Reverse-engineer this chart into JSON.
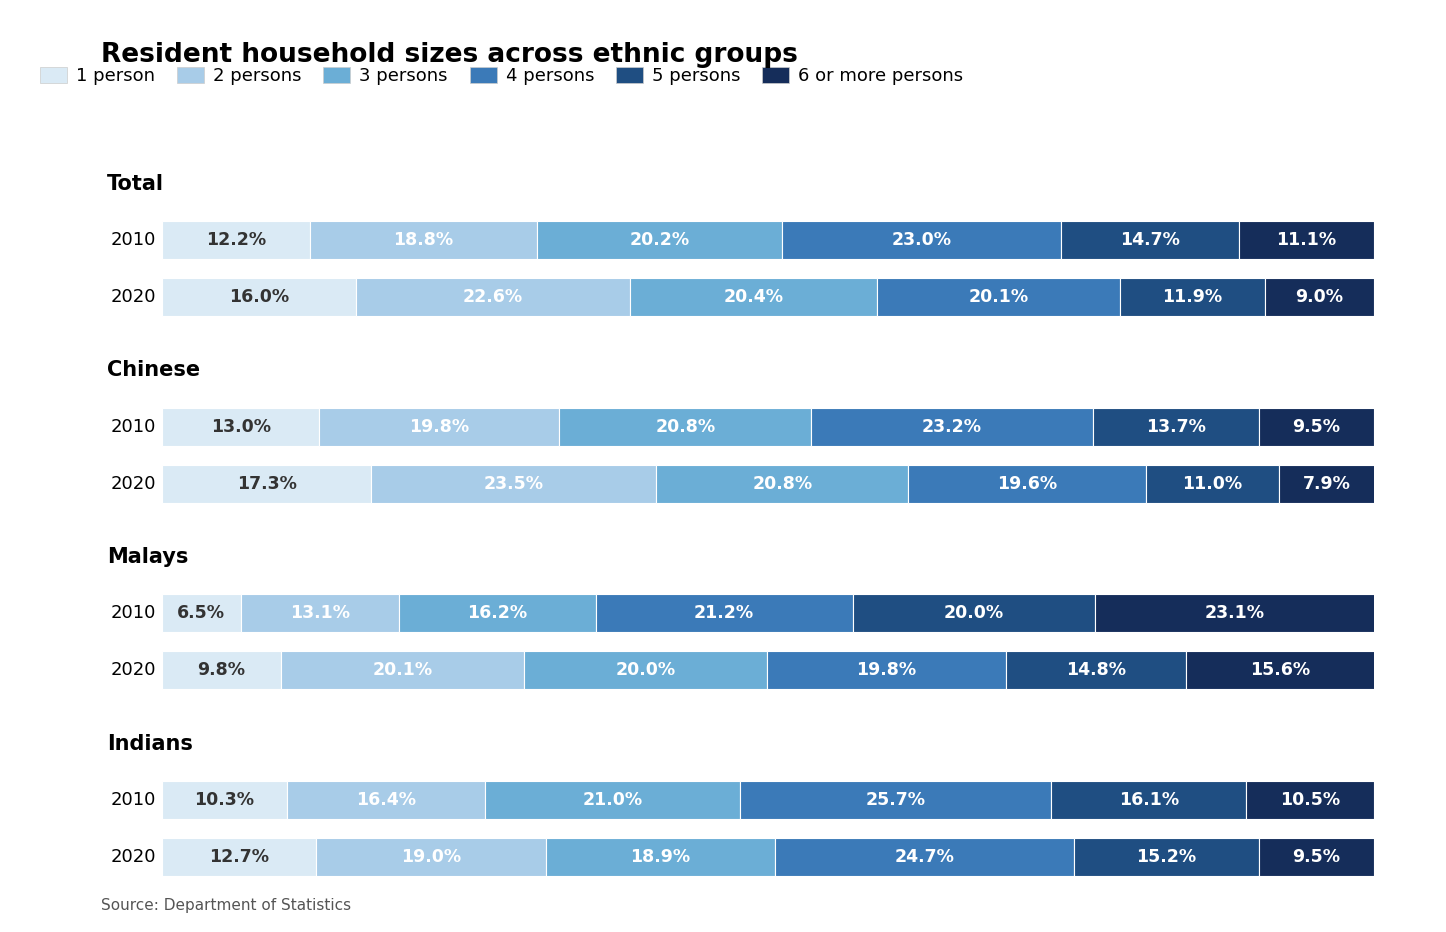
{
  "title": "Resident household sizes across ethnic groups",
  "source": "Source: Department of Statistics",
  "legend_labels": [
    "1 person",
    "2 persons",
    "3 persons",
    "4 persons",
    "5 persons",
    "6 or more persons"
  ],
  "colors": [
    "#daeaf5",
    "#a8cce8",
    "#6baed6",
    "#3b7ab8",
    "#1f4e82",
    "#152d5a"
  ],
  "groups": [
    {
      "name": "Total",
      "rows": [
        {
          "year": "2010",
          "values": [
            12.2,
            18.8,
            20.2,
            23.0,
            14.7,
            11.1
          ]
        },
        {
          "year": "2020",
          "values": [
            16.0,
            22.6,
            20.4,
            20.1,
            11.9,
            9.0
          ]
        }
      ]
    },
    {
      "name": "Chinese",
      "rows": [
        {
          "year": "2010",
          "values": [
            13.0,
            19.8,
            20.8,
            23.2,
            13.7,
            9.5
          ]
        },
        {
          "year": "2020",
          "values": [
            17.3,
            23.5,
            20.8,
            19.6,
            11.0,
            7.9
          ]
        }
      ]
    },
    {
      "name": "Malays",
      "rows": [
        {
          "year": "2010",
          "values": [
            6.5,
            13.1,
            16.2,
            21.2,
            20.0,
            23.1
          ]
        },
        {
          "year": "2020",
          "values": [
            9.8,
            20.1,
            20.0,
            19.8,
            14.8,
            15.6
          ]
        }
      ]
    },
    {
      "name": "Indians",
      "rows": [
        {
          "year": "2010",
          "values": [
            10.3,
            16.4,
            21.0,
            25.7,
            16.1,
            10.5
          ]
        },
        {
          "year": "2020",
          "values": [
            12.7,
            19.0,
            18.9,
            24.7,
            15.2,
            9.5
          ]
        }
      ]
    }
  ],
  "background_color": "#ffffff",
  "title_fontsize": 19,
  "label_fontsize": 12.5,
  "year_fontsize": 13,
  "group_fontsize": 15,
  "source_fontsize": 11,
  "bar_height": 0.55,
  "light_text_threshold": 2,
  "dark_text_color": "#333333",
  "white_text_color": "#ffffff"
}
